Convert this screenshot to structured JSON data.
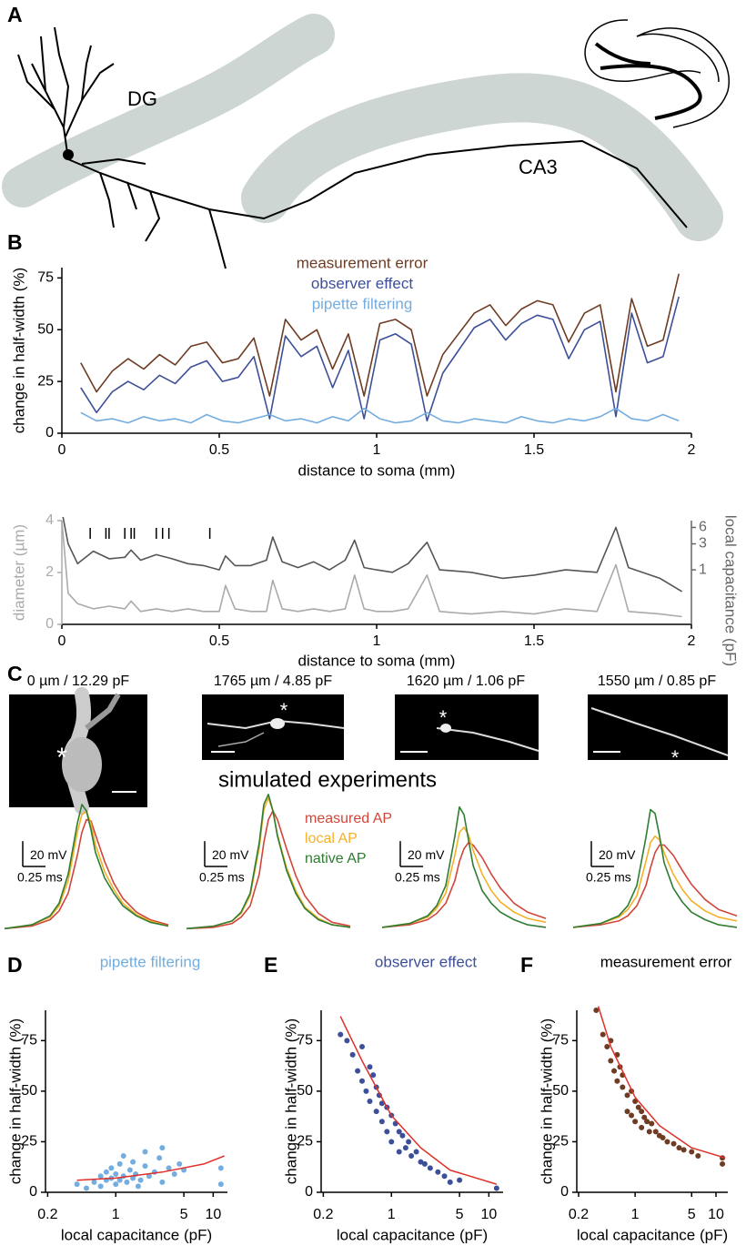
{
  "panel_labels": [
    "A",
    "B",
    "C",
    "D",
    "E",
    "F"
  ],
  "panel_a": {
    "labels": [
      "DG",
      "CA3"
    ]
  },
  "panel_c": {
    "captions": [
      "0 µm / 12.29 pF",
      "1765 µm / 4.85 pF",
      "1620 µm / 1.06 pF",
      "1550 µm / 0.85 pF"
    ],
    "asterisks": [
      "*",
      "*",
      "*",
      "*"
    ],
    "title": "simulated experiments"
  },
  "chart_data": [
    {
      "type": "line",
      "xlabel": "distance to soma (mm)",
      "ylabel": "change in half-width (%)",
      "xlim": [
        0,
        2
      ],
      "xticks": [
        0,
        0.5,
        1,
        1.5,
        2
      ],
      "ylim": [
        0,
        80
      ],
      "yticks": [
        0,
        25,
        50,
        75
      ],
      "x": [
        0.06,
        0.11,
        0.16,
        0.21,
        0.26,
        0.31,
        0.36,
        0.41,
        0.46,
        0.51,
        0.56,
        0.61,
        0.66,
        0.71,
        0.76,
        0.81,
        0.86,
        0.91,
        0.96,
        1.01,
        1.06,
        1.11,
        1.16,
        1.21,
        1.26,
        1.31,
        1.36,
        1.41,
        1.46,
        1.51,
        1.56,
        1.61,
        1.66,
        1.71,
        1.76,
        1.81,
        1.86,
        1.91,
        1.96
      ],
      "series": [
        {
          "name": "measurement error",
          "color": "#6e3b23",
          "values": [
            34,
            20,
            30,
            36,
            31,
            38,
            33,
            42,
            44,
            34,
            36,
            46,
            18,
            55,
            45,
            50,
            31,
            48,
            18,
            53,
            55,
            50,
            18,
            38,
            48,
            58,
            62,
            52,
            60,
            64,
            62,
            44,
            58,
            62,
            20,
            65,
            42,
            45,
            77
          ]
        },
        {
          "name": "observer effect",
          "color": "#3c4f98",
          "values": [
            22,
            10,
            20,
            25,
            21,
            28,
            24,
            32,
            35,
            25,
            27,
            37,
            7,
            47,
            37,
            42,
            22,
            40,
            7,
            45,
            48,
            43,
            6,
            29,
            40,
            51,
            55,
            45,
            53,
            57,
            55,
            36,
            50,
            54,
            8,
            58,
            34,
            37,
            66
          ]
        },
        {
          "name": "pipette filtering",
          "color": "#74addf",
          "values": [
            10,
            6,
            7,
            5,
            8,
            6,
            7,
            5,
            9,
            6,
            5,
            7,
            9,
            6,
            7,
            5,
            8,
            6,
            12,
            7,
            5,
            6,
            10,
            6,
            5,
            7,
            6,
            5,
            8,
            6,
            5,
            7,
            6,
            8,
            12,
            7,
            6,
            9,
            6
          ]
        }
      ]
    },
    {
      "type": "line",
      "xlabel": "distance to soma (mm)",
      "ylabel": "diameter (µm)",
      "y2label": "local capacitance  (pF)",
      "axis_color": "#aaaaaa",
      "y2_axis_color": "#666666",
      "y2log": true,
      "xlim": [
        0,
        2
      ],
      "xticks": [
        0,
        0.5,
        1,
        1.5,
        2
      ],
      "ylim": [
        0,
        4
      ],
      "yticks": [
        0,
        2,
        4
      ],
      "y2lim": [
        0.1,
        8
      ],
      "y2ticks": [
        1,
        3,
        6
      ],
      "x": [
        0,
        0.02,
        0.05,
        0.1,
        0.15,
        0.2,
        0.22,
        0.25,
        0.3,
        0.35,
        0.4,
        0.45,
        0.5,
        0.52,
        0.55,
        0.6,
        0.65,
        0.67,
        0.7,
        0.75,
        0.8,
        0.85,
        0.9,
        0.93,
        0.96,
        1.0,
        1.05,
        1.1,
        1.16,
        1.2,
        1.3,
        1.4,
        1.5,
        1.6,
        1.7,
        1.76,
        1.8,
        1.9,
        1.97
      ],
      "series": [
        {
          "color": "#aaaaaa",
          "values": [
            4,
            1.2,
            0.8,
            0.6,
            0.7,
            0.6,
            0.9,
            0.5,
            0.6,
            0.5,
            0.6,
            0.5,
            0.5,
            1.5,
            0.6,
            0.5,
            0.5,
            1.7,
            0.6,
            0.5,
            0.6,
            0.5,
            0.6,
            1.9,
            0.6,
            0.5,
            0.5,
            0.6,
            1.9,
            0.5,
            0.4,
            0.5,
            0.4,
            0.6,
            0.5,
            2.3,
            0.5,
            0.4,
            0.3
          ]
        },
        {
          "color": "#555555",
          "axis": "y2",
          "values": [
            12,
            3,
            1.3,
            2.2,
            1.6,
            1.7,
            2.3,
            1.5,
            1.9,
            1.6,
            1.3,
            1.2,
            1.0,
            1.8,
            1.2,
            1.2,
            1.5,
            4,
            1.4,
            1.1,
            1.4,
            1.0,
            1.5,
            3.5,
            1.1,
            1.0,
            0.9,
            1.3,
            3.2,
            1.0,
            0.9,
            0.7,
            0.8,
            1.0,
            0.9,
            6,
            1.1,
            0.7,
            0.4
          ]
        }
      ],
      "events": [
        0.09,
        0.14,
        0.15,
        0.2,
        0.22,
        0.23,
        0.3,
        0.32,
        0.34,
        0.47
      ]
    },
    {
      "type": "line",
      "xlim": [
        0,
        1.85
      ],
      "ylim": [
        -5,
        110
      ],
      "scalebar": {
        "y": {
          "value": 20,
          "label": "20 mV"
        },
        "x": {
          "value": 0.25,
          "label": "0.25 ms"
        }
      },
      "x": [
        0,
        0.3,
        0.5,
        0.6,
        0.7,
        0.8,
        0.85,
        0.9,
        0.95,
        1.0,
        1.1,
        1.2,
        1.3,
        1.45,
        1.6,
        1.8
      ],
      "series": [
        {
          "color": "#d2453a",
          "values": [
            2,
            4,
            9,
            16,
            30,
            60,
            78,
            88,
            87,
            76,
            55,
            38,
            26,
            15,
            9,
            5
          ]
        },
        {
          "color": "#f5b027",
          "values": [
            2,
            5,
            11,
            20,
            40,
            78,
            92,
            95,
            85,
            68,
            47,
            33,
            22,
            13,
            8,
            4
          ]
        },
        {
          "color": "#2e7d32",
          "values": [
            2,
            5,
            12,
            22,
            45,
            85,
            100,
            95,
            80,
            62,
            42,
            30,
            20,
            12,
            7,
            4
          ]
        }
      ]
    },
    {
      "type": "line",
      "xlim": [
        0,
        1.85
      ],
      "ylim": [
        -5,
        110
      ],
      "scalebar": {
        "y": {
          "value": 20,
          "label": "20 mV"
        },
        "x": {
          "value": 0.25,
          "label": "0.25 ms"
        }
      },
      "x": [
        0,
        0.3,
        0.5,
        0.6,
        0.7,
        0.8,
        0.85,
        0.9,
        0.95,
        1.0,
        1.1,
        1.2,
        1.3,
        1.45,
        1.6,
        1.8
      ],
      "series": [
        {
          "name": "measured AP",
          "color": "#d2453a",
          "values": [
            2,
            3,
            6,
            11,
            20,
            45,
            70,
            88,
            95,
            88,
            65,
            44,
            28,
            14,
            7,
            4
          ]
        },
        {
          "name": "local AP",
          "color": "#f5b027",
          "values": [
            2,
            4,
            8,
            14,
            28,
            66,
            96,
            105,
            95,
            76,
            50,
            32,
            19,
            10,
            5,
            3
          ]
        },
        {
          "name": "native AP",
          "color": "#2e7d32",
          "values": [
            2,
            4,
            8,
            15,
            30,
            70,
            100,
            108,
            95,
            75,
            48,
            30,
            18,
            9,
            5,
            3
          ]
        }
      ]
    },
    {
      "type": "line",
      "xlim": [
        0,
        1.85
      ],
      "ylim": [
        -5,
        110
      ],
      "scalebar": {
        "y": {
          "value": 20,
          "label": "20 mV"
        },
        "x": {
          "value": 0.25,
          "label": "0.25 ms"
        }
      },
      "x": [
        0,
        0.3,
        0.5,
        0.6,
        0.7,
        0.8,
        0.85,
        0.9,
        0.95,
        1.0,
        1.1,
        1.2,
        1.3,
        1.45,
        1.6,
        1.8
      ],
      "series": [
        {
          "color": "#d2453a",
          "values": [
            3,
            5,
            9,
            14,
            22,
            40,
            55,
            65,
            70,
            68,
            58,
            45,
            34,
            22,
            15,
            10
          ]
        },
        {
          "color": "#f5b027",
          "values": [
            3,
            6,
            11,
            18,
            30,
            60,
            78,
            82,
            76,
            64,
            45,
            32,
            23,
            15,
            10,
            7
          ]
        },
        {
          "color": "#2e7d32",
          "values": [
            3,
            6,
            12,
            20,
            36,
            75,
            98,
            92,
            72,
            52,
            32,
            22,
            15,
            9,
            5,
            3
          ]
        }
      ]
    },
    {
      "type": "line",
      "xlim": [
        0,
        1.85
      ],
      "ylim": [
        -5,
        110
      ],
      "scalebar": {
        "y": {
          "value": 20,
          "label": "20 mV"
        },
        "x": {
          "value": 0.25,
          "label": "0.25 ms"
        }
      },
      "x": [
        0,
        0.3,
        0.5,
        0.6,
        0.7,
        0.8,
        0.85,
        0.9,
        0.95,
        1.0,
        1.1,
        1.2,
        1.3,
        1.45,
        1.6,
        1.8
      ],
      "series": [
        {
          "color": "#d2453a",
          "values": [
            3,
            5,
            8,
            12,
            20,
            36,
            50,
            62,
            68,
            68,
            60,
            48,
            37,
            25,
            17,
            12
          ]
        },
        {
          "color": "#f5b027",
          "values": [
            3,
            6,
            11,
            17,
            28,
            55,
            70,
            75,
            72,
            62,
            45,
            33,
            24,
            16,
            11,
            8
          ]
        },
        {
          "color": "#2e7d32",
          "values": [
            3,
            6,
            12,
            20,
            36,
            74,
            96,
            93,
            75,
            54,
            34,
            23,
            15,
            9,
            5,
            3
          ]
        }
      ]
    },
    {
      "type": "scatter",
      "title": "pipette filtering",
      "title_color": "#74addf",
      "color": "#74addf",
      "xlabel": "local capacitance (pF)",
      "ylabel": "change in half-width (%)",
      "xlog": true,
      "xlim": [
        0.19,
        14
      ],
      "xticks": [
        0.2,
        1,
        5,
        10
      ],
      "ylim": [
        0,
        90
      ],
      "yticks": [
        0,
        25,
        50,
        75
      ],
      "x": [
        0.4,
        0.5,
        0.6,
        0.7,
        0.7,
        0.8,
        0.8,
        0.9,
        0.9,
        1.0,
        1.0,
        1.1,
        1.1,
        1.2,
        1.2,
        1.3,
        1.4,
        1.5,
        1.5,
        1.6,
        1.8,
        2.0,
        2.0,
        2.2,
        2.5,
        2.8,
        3.0,
        3.5,
        4.0,
        4.5,
        5.0,
        3.0,
        1.7,
        12,
        12
      ],
      "values": [
        4,
        2,
        5,
        8,
        3,
        6,
        10,
        7,
        12,
        4,
        9,
        14,
        6,
        8,
        18,
        5,
        11,
        7,
        15,
        9,
        6,
        13,
        20,
        8,
        10,
        17,
        22,
        12,
        9,
        14,
        11,
        5,
        3,
        12,
        4
      ],
      "fit": {
        "color": "#e0302a",
        "x": [
          0.4,
          1,
          3,
          8,
          13
        ],
        "values": [
          6,
          7,
          10,
          14,
          18
        ]
      }
    },
    {
      "type": "scatter",
      "title": "observer effect",
      "title_color": "#3c4f98",
      "color": "#3c4f98",
      "xlabel": "local capacitance (pF)",
      "ylabel": "change in half-width (%)",
      "xlog": true,
      "xlim": [
        0.19,
        14
      ],
      "xticks": [
        0.2,
        1,
        5,
        10
      ],
      "ylim": [
        0,
        90
      ],
      "yticks": [
        0,
        25,
        50,
        75
      ],
      "x": [
        0.3,
        0.35,
        0.4,
        0.45,
        0.5,
        0.5,
        0.55,
        0.6,
        0.6,
        0.65,
        0.7,
        0.7,
        0.75,
        0.8,
        0.8,
        0.9,
        0.9,
        1.0,
        1.0,
        1.1,
        1.2,
        1.2,
        1.3,
        1.4,
        1.5,
        1.6,
        1.8,
        2.0,
        2.2,
        2.5,
        3.0,
        3.5,
        4.0,
        5.0,
        12
      ],
      "values": [
        78,
        75,
        68,
        60,
        72,
        55,
        50,
        62,
        45,
        58,
        52,
        40,
        48,
        44,
        35,
        42,
        30,
        38,
        25,
        34,
        30,
        20,
        28,
        22,
        25,
        18,
        20,
        15,
        14,
        12,
        10,
        8,
        5,
        6,
        2
      ],
      "fit": {
        "color": "#e0302a",
        "x": [
          0.3,
          0.5,
          1,
          2,
          4,
          12
        ],
        "values": [
          87,
          65,
          38,
          22,
          11,
          4
        ]
      }
    },
    {
      "type": "scatter",
      "title": "measurement error",
      "title_color": "#000000",
      "color": "#6e3b23",
      "xlabel": "local capacitance (pF)",
      "ylabel": "change in half-width (%)",
      "xlog": true,
      "xlim": [
        0.19,
        14
      ],
      "xticks": [
        0.2,
        1,
        5,
        10
      ],
      "ylim": [
        0,
        90
      ],
      "yticks": [
        0,
        25,
        50,
        75
      ],
      "x": [
        0.33,
        0.4,
        0.45,
        0.5,
        0.5,
        0.55,
        0.6,
        0.6,
        0.65,
        0.7,
        0.7,
        0.8,
        0.8,
        0.9,
        0.9,
        1.0,
        1.0,
        1.1,
        1.2,
        1.2,
        1.3,
        1.4,
        1.5,
        1.6,
        1.8,
        2.0,
        2.2,
        2.5,
        3.0,
        3.5,
        4.0,
        5.0,
        6.0,
        12,
        12
      ],
      "values": [
        90,
        78,
        72,
        65,
        75,
        60,
        68,
        55,
        62,
        52,
        58,
        48,
        40,
        50,
        38,
        45,
        35,
        42,
        40,
        32,
        37,
        35,
        30,
        34,
        30,
        28,
        27,
        25,
        24,
        22,
        21,
        20,
        18,
        17,
        14
      ],
      "fit": {
        "color": "#e0302a",
        "x": [
          0.35,
          0.5,
          1,
          2,
          5,
          13
        ],
        "values": [
          92,
          72,
          47,
          33,
          22,
          17
        ]
      }
    }
  ]
}
